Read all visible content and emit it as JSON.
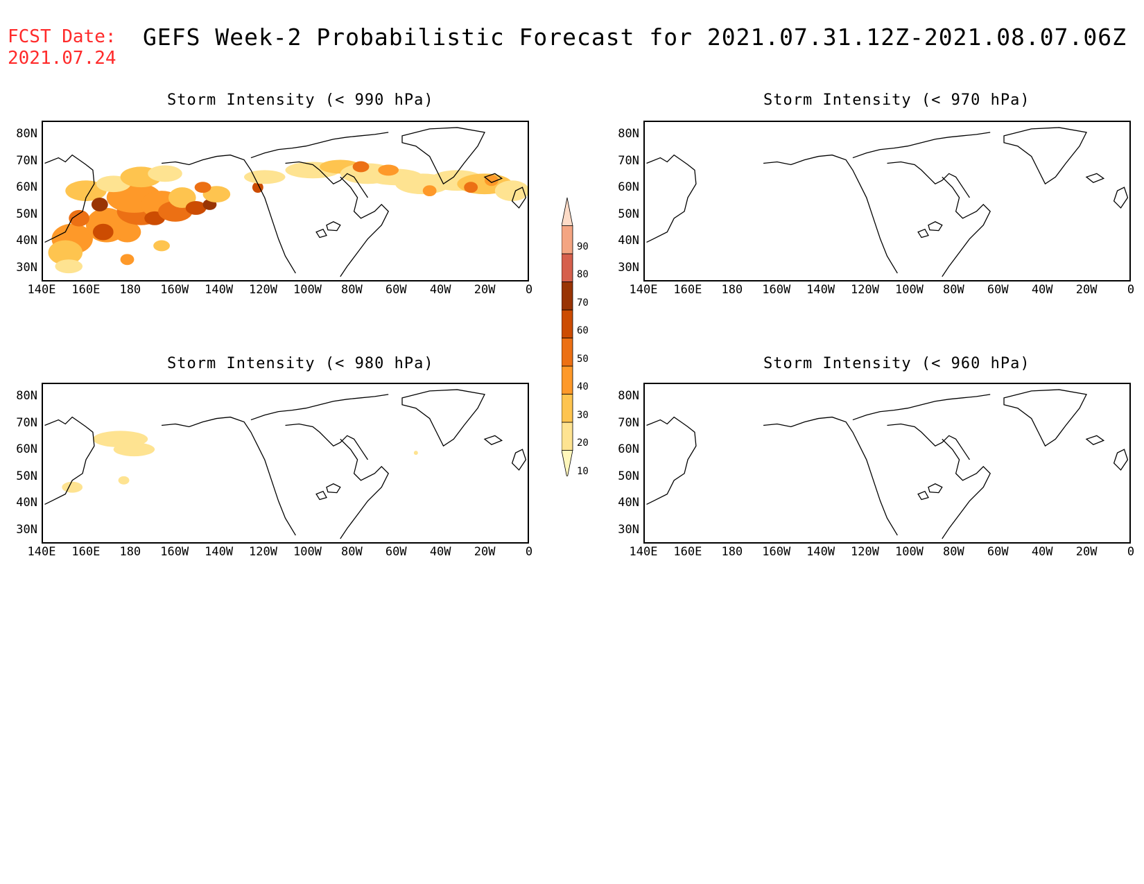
{
  "header": {
    "fcst_line1": "FCST Date:",
    "fcst_line2": "2021.07.24",
    "title": "GEFS Week-2 Probabilistic Forecast for 2021.07.31.12Z-2021.08.07.06Z"
  },
  "panels": [
    {
      "title": "Storm Intensity (< 990 hPa)"
    },
    {
      "title": "Storm Intensity (< 970 hPa)"
    },
    {
      "title": "Storm Intensity (< 980 hPa)"
    },
    {
      "title": "Storm Intensity (< 960 hPa)"
    }
  ],
  "axes": {
    "y_ticks": [
      "80N",
      "70N",
      "60N",
      "50N",
      "40N",
      "30N"
    ],
    "x_ticks": [
      "140E",
      "160E",
      "180",
      "160W",
      "140W",
      "120W",
      "100W",
      "80W",
      "60W",
      "40W",
      "20W",
      "0"
    ]
  },
  "colorbar": {
    "labels": [
      "10",
      "20",
      "30",
      "40",
      "50",
      "60",
      "70",
      "80",
      "90"
    ],
    "colors": [
      "#fff7bc",
      "#fee391",
      "#fec44f",
      "#fe9929",
      "#ec7014",
      "#cc4c02",
      "#993404",
      "#d6604d",
      "#f4a582",
      "#fddbc7"
    ]
  },
  "chart_data": {
    "type": "heatmap",
    "legend_levels": [
      10,
      20,
      30,
      40,
      50,
      60,
      70,
      80,
      90
    ],
    "lon_range": [
      "140E",
      "0"
    ],
    "lat_range": [
      "30N",
      "80N"
    ]
  }
}
